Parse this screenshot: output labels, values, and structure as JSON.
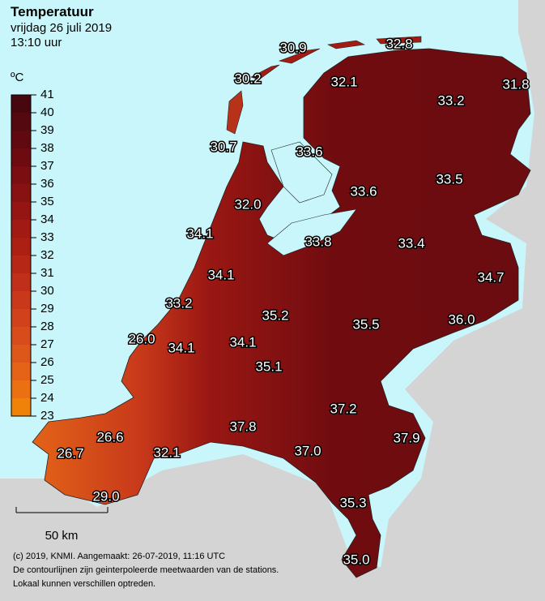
{
  "header": {
    "title": "Temperatuur",
    "date": "vrijdag 26 juli 2019",
    "time": "13:10 uur"
  },
  "legend": {
    "unit": "ºC",
    "ticks": [
      23,
      24,
      25,
      26,
      27,
      28,
      29,
      30,
      31,
      32,
      33,
      34,
      35,
      36,
      37,
      38,
      39,
      40,
      41
    ],
    "colors": [
      "#f0820a",
      "#ea7012",
      "#e46316",
      "#de571a",
      "#d84c1c",
      "#d1421c",
      "#c9381b",
      "#c02f19",
      "#b62716",
      "#ac2014",
      "#a11a13",
      "#951512",
      "#881111",
      "#7b0e10",
      "#6e0b10",
      "#610910",
      "#540810",
      "#47070f"
    ]
  },
  "stations": [
    {
      "label": "30.9"
    },
    {
      "label": "32.8"
    },
    {
      "label": "30.2"
    },
    {
      "label": "32.1"
    },
    {
      "label": "31.8"
    },
    {
      "label": "33.2"
    },
    {
      "label": "30.7"
    },
    {
      "label": "33.6"
    },
    {
      "label": "33.5"
    },
    {
      "label": "33.6"
    },
    {
      "label": "32.0"
    },
    {
      "label": "34.1"
    },
    {
      "label": "33.8"
    },
    {
      "label": "33.4"
    },
    {
      "label": "34.1"
    },
    {
      "label": "34.7"
    },
    {
      "label": "33.2"
    },
    {
      "label": "35.2"
    },
    {
      "label": "35.5"
    },
    {
      "label": "36.0"
    },
    {
      "label": "26.0"
    },
    {
      "label": "34.1"
    },
    {
      "label": "34.1"
    },
    {
      "label": "35.1"
    },
    {
      "label": "37.2"
    },
    {
      "label": "37.8"
    },
    {
      "label": "37.0"
    },
    {
      "label": "37.9"
    },
    {
      "label": "26.6"
    },
    {
      "label": "26.7"
    },
    {
      "label": "32.1"
    },
    {
      "label": "29.0"
    },
    {
      "label": "35.3"
    },
    {
      "label": "35.0"
    }
  ],
  "scale": {
    "label": "50 km"
  },
  "footer": {
    "copyright": "(c) 2019, KNMI. Aangemaakt: 26-07-2019, 11:16 UTC",
    "note1": "De contourlijnen zijn geinterpoleerde meetwaarden van de stations.",
    "note2": "Lokaal kunnen verschillen optreden."
  }
}
